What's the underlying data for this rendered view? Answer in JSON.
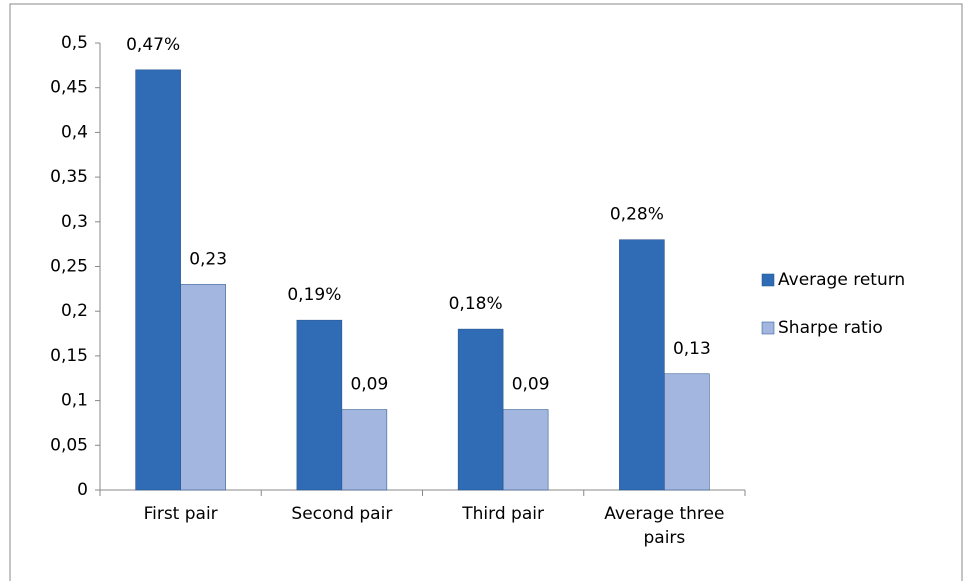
{
  "chart_data": {
    "type": "bar",
    "categories": [
      "First pair",
      "Second pair",
      "Third pair",
      "Average three pairs"
    ],
    "series": [
      {
        "name": "Average return",
        "color": "#2f6cb5",
        "values": [
          0.47,
          0.19,
          0.18,
          0.28
        ],
        "value_labels": [
          "0,47%",
          "0,19%",
          "0,18%",
          "0,28%"
        ]
      },
      {
        "name": "Sharpe ratio",
        "color": "#a3b6df",
        "values": [
          0.23,
          0.09,
          0.09,
          0.13
        ],
        "value_labels": [
          "0,23",
          "0,09",
          "0,09",
          "0,13"
        ]
      }
    ],
    "ylim": [
      0,
      0.5
    ],
    "yticks": [
      0,
      {
        "value": 0.05,
        "label": "0,05"
      },
      {
        "value": 0.1,
        "label": "0,1"
      },
      {
        "value": 0.15,
        "label": "0,15"
      },
      {
        "value": 0.2,
        "label": "0,2"
      },
      {
        "value": 0.25,
        "label": "0,25"
      },
      {
        "value": 0.3,
        "label": "0,3"
      },
      {
        "value": 0.35,
        "label": "0,35"
      },
      {
        "value": 0.4,
        "label": "0,4"
      },
      {
        "value": 0.45,
        "label": "0,45"
      },
      {
        "value": 0.5,
        "label": "0,5"
      }
    ],
    "grid": false,
    "legend": "right"
  }
}
